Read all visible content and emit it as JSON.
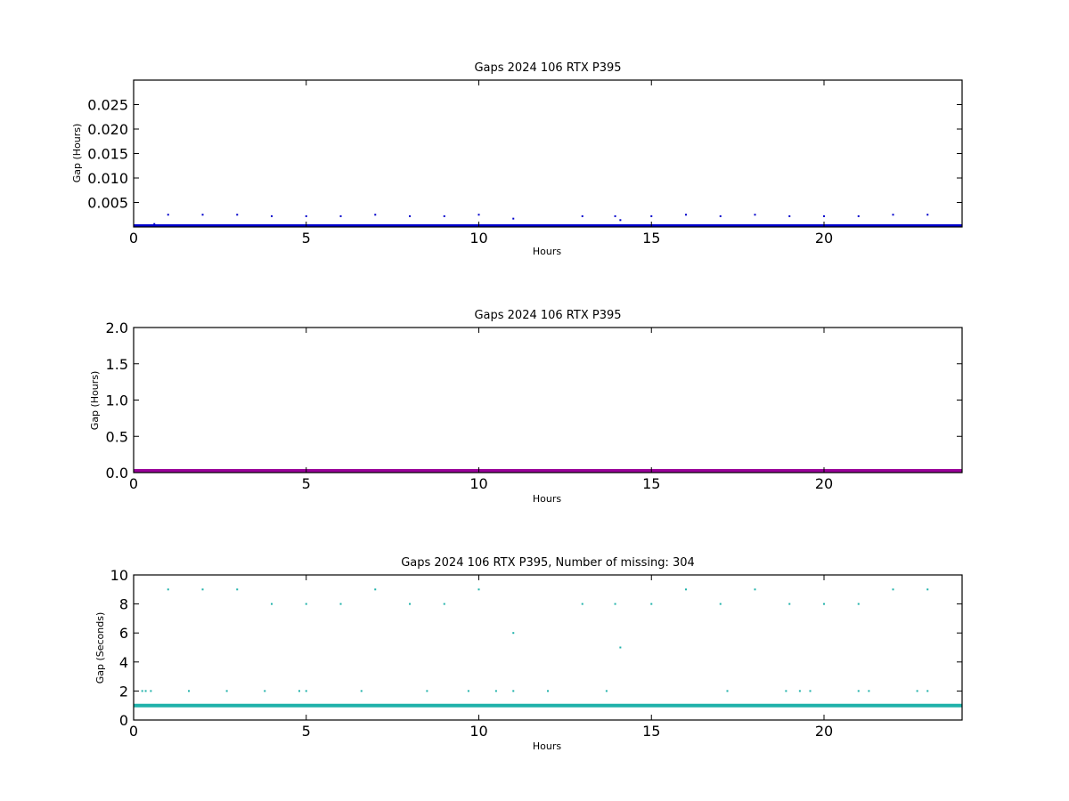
{
  "chart_data": [
    {
      "type": "scatter",
      "title": "Gaps 2024 106 RTX  P395",
      "xlabel": "Hours",
      "ylabel": "Gap (Hours)",
      "xlim": [
        0,
        24
      ],
      "ylim": [
        0,
        0.03
      ],
      "x_ticks": [
        0,
        5,
        10,
        15,
        20
      ],
      "x_tick_labels": [
        "0",
        "5",
        "10",
        "15",
        "20"
      ],
      "y_ticks": [
        0.005,
        0.01,
        0.015,
        0.02,
        0.025
      ],
      "y_tick_labels": [
        "0.005",
        "0.010",
        "0.015",
        "0.020",
        "0.025"
      ],
      "color": "#0000cc",
      "baseline": {
        "y": 0.00028,
        "x_from": 0,
        "x_to": 24
      },
      "points": [
        {
          "x": 1.0,
          "y": 0.0025
        },
        {
          "x": 2.0,
          "y": 0.0025
        },
        {
          "x": 3.0,
          "y": 0.0025
        },
        {
          "x": 4.0,
          "y": 0.0022
        },
        {
          "x": 5.0,
          "y": 0.0022
        },
        {
          "x": 6.0,
          "y": 0.0022
        },
        {
          "x": 7.0,
          "y": 0.0025
        },
        {
          "x": 8.0,
          "y": 0.0022
        },
        {
          "x": 9.0,
          "y": 0.0022
        },
        {
          "x": 10.0,
          "y": 0.0025
        },
        {
          "x": 11.0,
          "y": 0.0017
        },
        {
          "x": 13.0,
          "y": 0.0022
        },
        {
          "x": 13.95,
          "y": 0.0022
        },
        {
          "x": 14.1,
          "y": 0.0014
        },
        {
          "x": 15.0,
          "y": 0.0022
        },
        {
          "x": 16.0,
          "y": 0.0025
        },
        {
          "x": 17.0,
          "y": 0.0022
        },
        {
          "x": 18.0,
          "y": 0.0025
        },
        {
          "x": 19.0,
          "y": 0.0022
        },
        {
          "x": 20.0,
          "y": 0.0022
        },
        {
          "x": 21.0,
          "y": 0.0022
        },
        {
          "x": 22.0,
          "y": 0.0025
        },
        {
          "x": 23.0,
          "y": 0.0025
        },
        {
          "x": 0.6,
          "y": 0.0006
        }
      ]
    },
    {
      "type": "scatter",
      "title": "Gaps 2024 106 RTX  P395",
      "xlabel": "Hours",
      "ylabel": "Gap (Hours)",
      "xlim": [
        0,
        24
      ],
      "ylim": [
        0,
        2.0
      ],
      "x_ticks": [
        0,
        5,
        10,
        15,
        20
      ],
      "x_tick_labels": [
        "0",
        "5",
        "10",
        "15",
        "20"
      ],
      "y_ticks": [
        0.0,
        0.5,
        1.0,
        1.5,
        2.0
      ],
      "y_tick_labels": [
        "0.0",
        "0.5",
        "1.0",
        "1.5",
        "2.0"
      ],
      "color": "#990099",
      "baseline": {
        "y": 0.0003,
        "x_from": 0,
        "x_to": 24
      },
      "points": [
        {
          "x": 0.6,
          "y": 0.02
        }
      ]
    },
    {
      "type": "scatter",
      "title": "Gaps 2024 106 RTX  P395, Number of missing: 304",
      "xlabel": "Hours",
      "ylabel": "Gap (Seconds)",
      "xlim": [
        0,
        24
      ],
      "ylim": [
        0,
        10
      ],
      "x_ticks": [
        0,
        5,
        10,
        15,
        20
      ],
      "x_tick_labels": [
        "0",
        "5",
        "10",
        "15",
        "20"
      ],
      "y_ticks": [
        0,
        2,
        4,
        6,
        8,
        10
      ],
      "y_tick_labels": [
        "0",
        "2",
        "4",
        "6",
        "8",
        "10"
      ],
      "color": "#20b2aa",
      "baseline": {
        "y": 1,
        "x_from": 0,
        "x_to": 24
      },
      "points": [
        {
          "x": 1.0,
          "y": 9
        },
        {
          "x": 2.0,
          "y": 9
        },
        {
          "x": 3.0,
          "y": 9
        },
        {
          "x": 7.0,
          "y": 9
        },
        {
          "x": 10.0,
          "y": 9
        },
        {
          "x": 16.0,
          "y": 9
        },
        {
          "x": 18.0,
          "y": 9
        },
        {
          "x": 22.0,
          "y": 9
        },
        {
          "x": 23.0,
          "y": 9
        },
        {
          "x": 4.0,
          "y": 8
        },
        {
          "x": 5.0,
          "y": 8
        },
        {
          "x": 6.0,
          "y": 8
        },
        {
          "x": 8.0,
          "y": 8
        },
        {
          "x": 9.0,
          "y": 8
        },
        {
          "x": 13.0,
          "y": 8
        },
        {
          "x": 13.95,
          "y": 8
        },
        {
          "x": 15.0,
          "y": 8
        },
        {
          "x": 17.0,
          "y": 8
        },
        {
          "x": 19.0,
          "y": 8
        },
        {
          "x": 20.0,
          "y": 8
        },
        {
          "x": 21.0,
          "y": 8
        },
        {
          "x": 11.0,
          "y": 6
        },
        {
          "x": 14.1,
          "y": 5
        },
        {
          "x": 0.25,
          "y": 2
        },
        {
          "x": 0.35,
          "y": 2
        },
        {
          "x": 0.5,
          "y": 2
        },
        {
          "x": 1.6,
          "y": 2
        },
        {
          "x": 2.7,
          "y": 2
        },
        {
          "x": 3.8,
          "y": 2
        },
        {
          "x": 4.8,
          "y": 2
        },
        {
          "x": 5.0,
          "y": 2
        },
        {
          "x": 6.6,
          "y": 2
        },
        {
          "x": 8.5,
          "y": 2
        },
        {
          "x": 9.7,
          "y": 2
        },
        {
          "x": 10.5,
          "y": 2
        },
        {
          "x": 11.0,
          "y": 2
        },
        {
          "x": 12.0,
          "y": 2
        },
        {
          "x": 13.7,
          "y": 2
        },
        {
          "x": 17.2,
          "y": 2
        },
        {
          "x": 18.9,
          "y": 2
        },
        {
          "x": 19.3,
          "y": 2
        },
        {
          "x": 19.6,
          "y": 2
        },
        {
          "x": 21.0,
          "y": 2
        },
        {
          "x": 21.3,
          "y": 2
        },
        {
          "x": 22.7,
          "y": 2
        },
        {
          "x": 23.0,
          "y": 2
        }
      ]
    }
  ]
}
